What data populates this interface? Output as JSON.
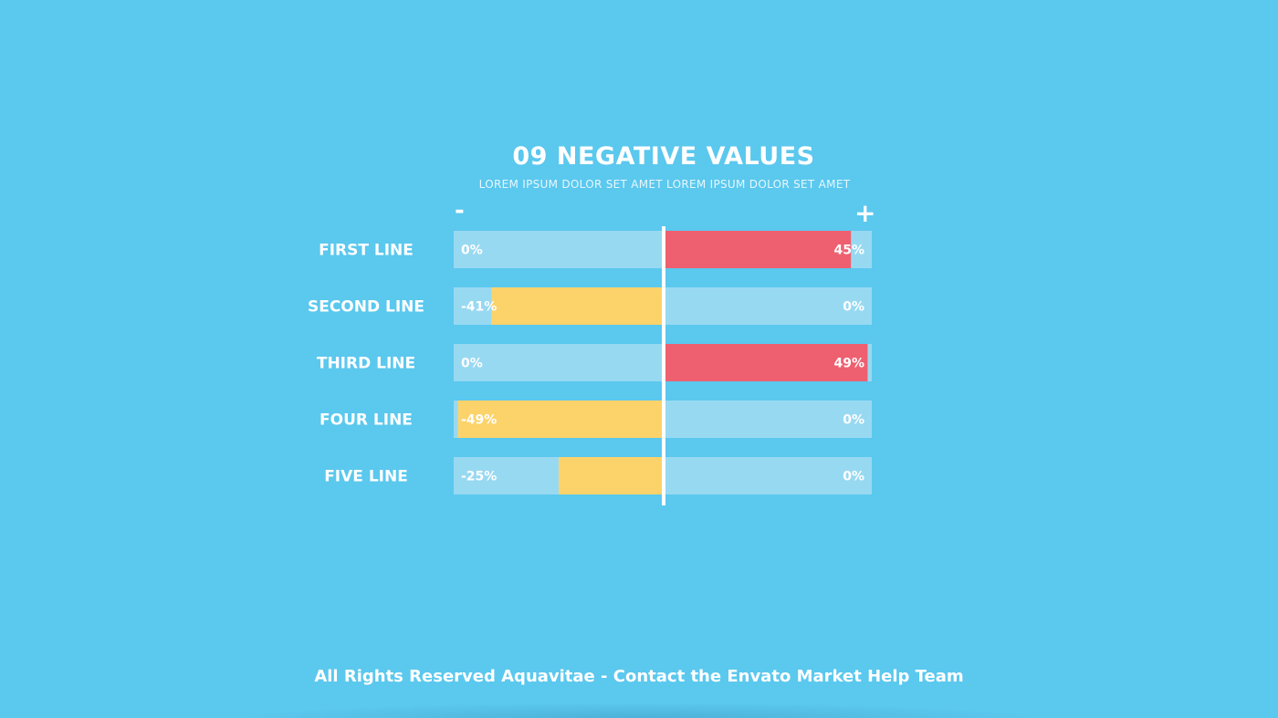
{
  "colors": {
    "background": "#5bc8ee",
    "track": "#98d9f2",
    "positive": "#ee6070",
    "negative": "#fcd36a",
    "axis": "#ffffff",
    "text": "#ffffff"
  },
  "header": {
    "title": "09  NEGATIVE VALUES",
    "subtitle": "LOREM IPSUM DOLOR SET AMET LOREM IPSUM DOLOR SET AMET",
    "minus_sign": "-",
    "plus_sign": "+"
  },
  "chart_data": {
    "type": "bar",
    "orientation": "horizontal",
    "diverging": true,
    "xlim": [
      -50,
      50
    ],
    "grid": false,
    "categories": [
      "FIRST LINE",
      "SECOND LINE",
      "THIRD LINE",
      "FOUR LINE",
      "FIVE LINE"
    ],
    "values": [
      45,
      -41,
      49,
      -49,
      -25
    ],
    "negative_labels": [
      "0%",
      "-41%",
      "0%",
      "-49%",
      "-25%"
    ],
    "positive_labels": [
      "45%",
      "0%",
      "49%",
      "0%",
      "0%"
    ]
  },
  "footer": {
    "text": "All Rights Reserved Aquavitae - Contact the Envato Market Help Team"
  }
}
